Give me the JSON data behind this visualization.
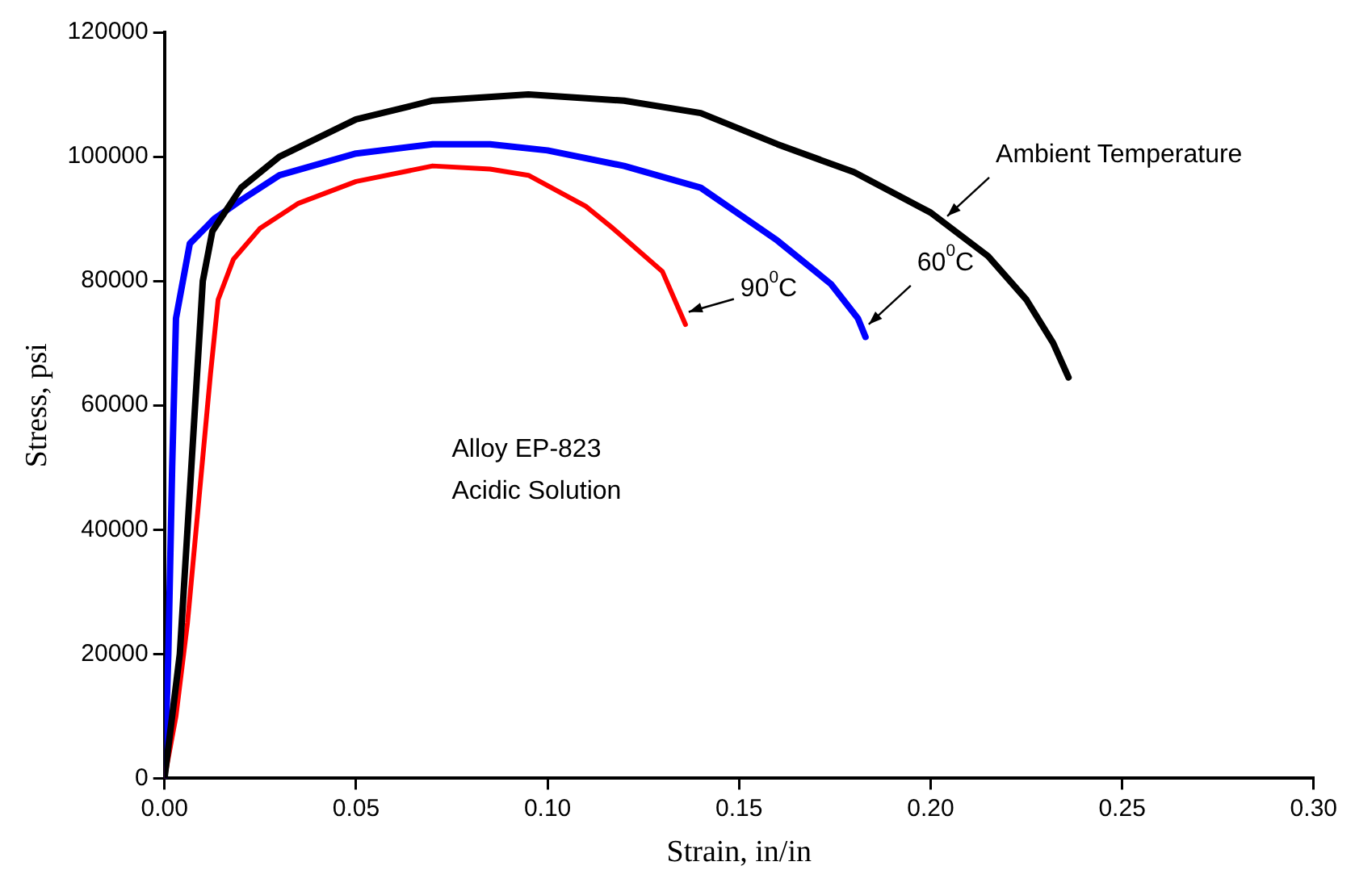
{
  "chart_data": {
    "type": "line",
    "xlabel": "Strain, in/in",
    "ylabel": "Stress, psi",
    "xlim": [
      0,
      0.3
    ],
    "xticks": [
      {
        "value": 0,
        "label": "0.00"
      },
      {
        "value": 0.05,
        "label": "0.05"
      },
      {
        "value": 0.1,
        "label": "0.10"
      },
      {
        "value": 0.15,
        "label": "0.15"
      },
      {
        "value": 0.2,
        "label": "0.20"
      },
      {
        "value": 0.25,
        "label": "0.25"
      },
      {
        "value": 0.3,
        "label": "0.30"
      }
    ],
    "ylim": [
      0,
      120000
    ],
    "yticks": [
      0,
      20000,
      40000,
      60000,
      80000,
      100000,
      120000
    ],
    "grid": false,
    "legend": false,
    "marker": "none",
    "line_style": "solid",
    "series": [
      {
        "color": "#000000",
        "x": [
          0,
          0.004,
          0.007,
          0.01,
          0.0125,
          0.02,
          0.03,
          0.05,
          0.07,
          0.095,
          0.12,
          0.14,
          0.16,
          0.18,
          0.2,
          0.215,
          0.225,
          0.232,
          0.236
        ],
        "values": [
          0,
          20000,
          50000,
          80000,
          88000,
          95000,
          100000,
          106000,
          109000,
          110000,
          109000,
          107000,
          102000,
          97500,
          91000,
          84000,
          77000,
          70000,
          64500
        ]
      },
      {
        "color": "#0000ff",
        "x": [
          0,
          0.001,
          0.002,
          0.003,
          0.0066,
          0.013,
          0.02,
          0.03,
          0.05,
          0.07,
          0.085,
          0.1,
          0.12,
          0.14,
          0.16,
          0.174,
          0.181,
          0.183
        ],
        "values": [
          0,
          20000,
          50000,
          74000,
          86000,
          90000,
          93000,
          97000,
          100500,
          102000,
          102000,
          101000,
          98500,
          95000,
          86500,
          79500,
          74000,
          71000
        ]
      },
      {
        "color": "#ff0000",
        "x": [
          0,
          0.003,
          0.006,
          0.009,
          0.012,
          0.014,
          0.018,
          0.025,
          0.035,
          0.05,
          0.07,
          0.085,
          0.095,
          0.11,
          0.117,
          0.13,
          0.136
        ],
        "values": [
          0,
          10000,
          25000,
          45000,
          65000,
          77000,
          83500,
          88500,
          92500,
          96000,
          98500,
          98000,
          97000,
          92000,
          88500,
          81500,
          73000
        ]
      }
    ],
    "annotations": [
      {
        "text": "Ambient Temperature",
        "x": 0.2035,
        "y": 89900
      },
      {
        "text": "60$^{0}$C",
        "x": 0.183,
        "y": 72500
      },
      {
        "text": "90$^{0}$C",
        "x": 0.136,
        "y": 74500
      },
      "Alloy EP-823",
      "Acidic Solution"
    ]
  }
}
